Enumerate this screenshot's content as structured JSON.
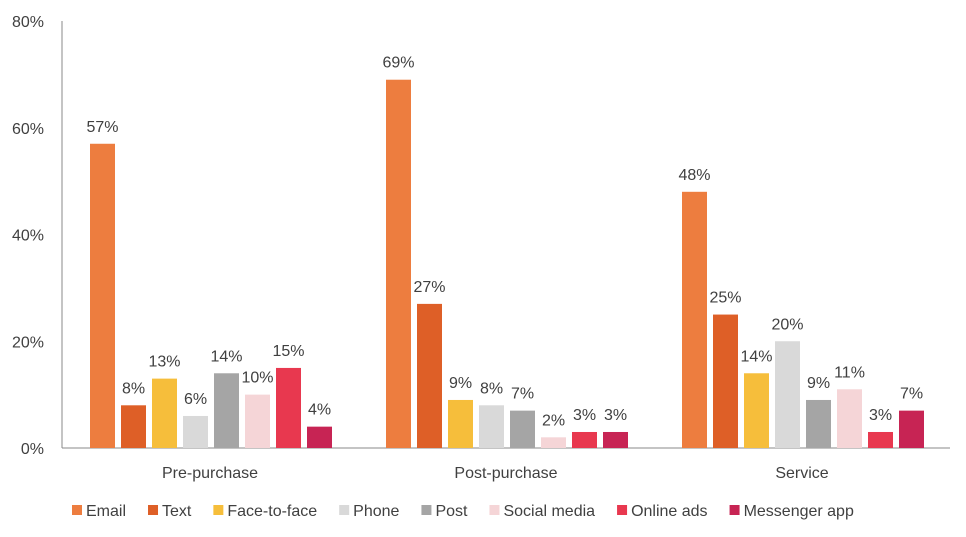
{
  "chart_data": {
    "type": "bar",
    "categories": [
      "Pre-purchase",
      "Post-purchase",
      "Service"
    ],
    "series": [
      {
        "name": "Email",
        "color": "#ED7D3F",
        "values": [
          57,
          69,
          48
        ]
      },
      {
        "name": "Text",
        "color": "#DE5F27",
        "values": [
          8,
          27,
          25
        ]
      },
      {
        "name": "Face-to-face",
        "color": "#F6BE3B",
        "values": [
          13,
          9,
          14
        ]
      },
      {
        "name": "Phone",
        "color": "#D9D9D9",
        "values": [
          6,
          8,
          20
        ]
      },
      {
        "name": "Post",
        "color": "#A5A5A5",
        "values": [
          14,
          7,
          9
        ]
      },
      {
        "name": "Social media",
        "color": "#F5D5D7",
        "values": [
          10,
          2,
          11
        ]
      },
      {
        "name": "Online ads",
        "color": "#E8384F",
        "values": [
          15,
          3,
          3
        ]
      },
      {
        "name": "Messenger app",
        "color": "#C72454",
        "values": [
          4,
          3,
          7
        ]
      }
    ],
    "yticks": [
      "0%",
      "20%",
      "40%",
      "60%",
      "80%"
    ],
    "ylim": [
      0,
      80
    ],
    "value_format": "percent",
    "grid": false,
    "legend": "bottom",
    "title": "",
    "xlabel": "",
    "ylabel": ""
  }
}
